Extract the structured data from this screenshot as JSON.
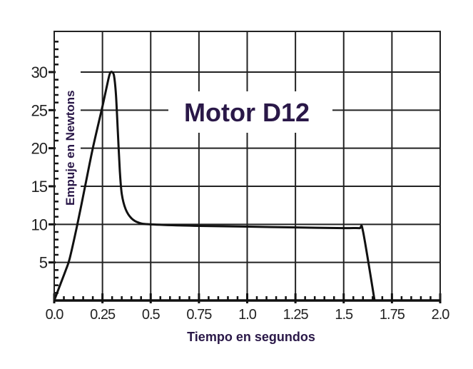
{
  "chart_data": {
    "type": "line",
    "title": "Motor D12",
    "xlabel": "Tiempo en segundos",
    "ylabel": "Empuje en Newtons",
    "xlim": [
      0,
      2.0
    ],
    "ylim": [
      0,
      35
    ],
    "grid": true,
    "x_ticks": [
      "0.0",
      "0.25",
      "0.5",
      "0.75",
      "1.0",
      "1.25",
      "1.5",
      "1.75",
      "2.0"
    ],
    "y_ticks": [
      "5",
      "10",
      "15",
      "20",
      "25",
      "30"
    ],
    "colors": {
      "line": "#111111",
      "label": "#2a1848",
      "grid": "#222222"
    },
    "series": [
      {
        "x": [
          0,
          0.03,
          0.06,
          0.08,
          0.12,
          0.16,
          0.2,
          0.25,
          0.28,
          0.29,
          0.3,
          0.31,
          0.32,
          0.33,
          0.34,
          0.35,
          0.37,
          0.4,
          0.44,
          0.5,
          0.75,
          1.0,
          1.25,
          1.5,
          1.58,
          1.6,
          1.66
        ],
        "y": [
          0,
          2,
          4,
          5.5,
          10,
          15,
          20,
          25.5,
          29,
          29.9,
          30,
          29.5,
          27,
          22,
          17,
          14,
          12,
          10.8,
          10.2,
          10,
          9.8,
          9.7,
          9.6,
          9.5,
          9.5,
          9.1,
          0
        ]
      }
    ]
  }
}
